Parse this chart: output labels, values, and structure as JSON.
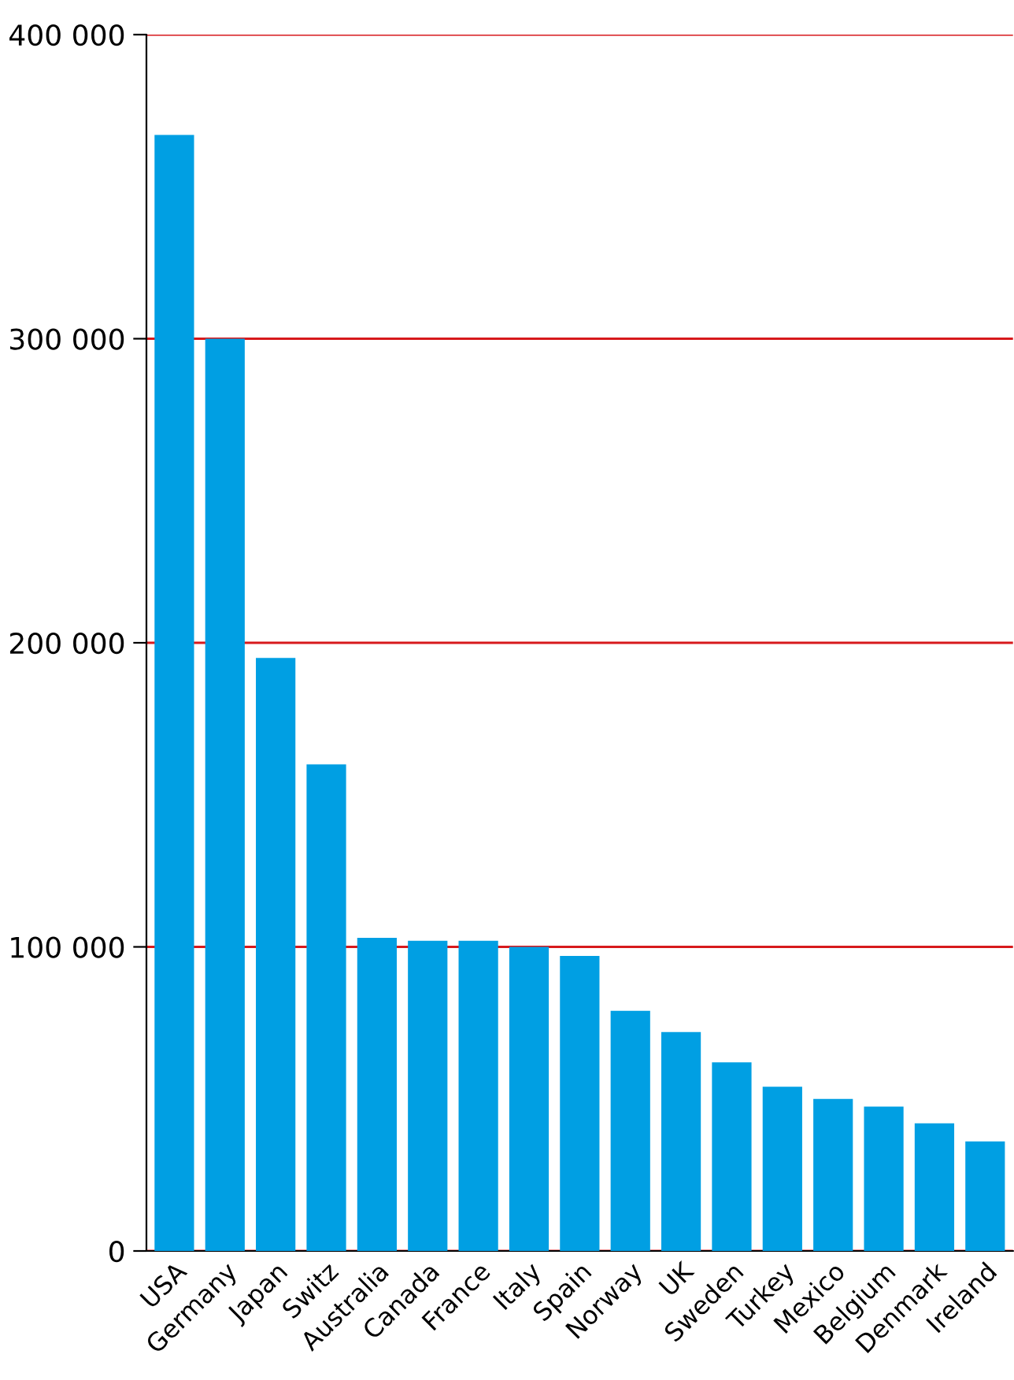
{
  "chart_data": {
    "type": "bar",
    "categories": [
      "USA",
      "Germany",
      "Japan",
      "Switz",
      "Australia",
      "Canada",
      "France",
      "Italy",
      "Spain",
      "Norway",
      "UK",
      "Sweden",
      "Turkey",
      "Mexico",
      "Belgium",
      "Denmark",
      "Ireland"
    ],
    "values": [
      367000,
      300000,
      195000,
      160000,
      103000,
      102000,
      102000,
      100000,
      97000,
      79000,
      72000,
      62000,
      54000,
      50000,
      47500,
      42000,
      36000
    ],
    "color": "#009fe3",
    "ylim": [
      0,
      400000
    ],
    "yticks": [
      0,
      {
        "value": 100000,
        "label": "100 000"
      },
      {
        "value": 200000,
        "label": "200 000"
      },
      {
        "value": 300000,
        "label": "300 000"
      },
      {
        "value": 400000,
        "label": "400 000"
      }
    ],
    "grid": "y"
  }
}
